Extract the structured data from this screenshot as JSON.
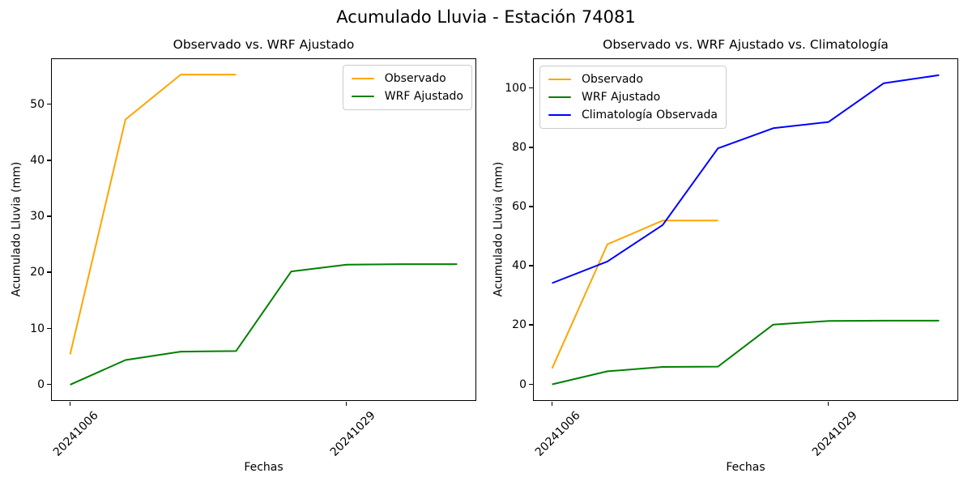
{
  "figure": {
    "suptitle": "Acumulado Lluvia - Estación 74081",
    "background": "#ffffff"
  },
  "chart_data": [
    {
      "type": "line",
      "title": "Observado vs. WRF Ajustado",
      "xlabel": "Fechas",
      "ylabel": "Acumulado Lluvia (mm)",
      "x_tick_labels": [
        "20241006",
        "20241029"
      ],
      "x_tick_point_indices": [
        0,
        5
      ],
      "x_points_count": 8,
      "yticks": [
        0,
        10,
        20,
        30,
        40,
        50
      ],
      "ylim": [
        -2.9,
        58.2
      ],
      "grid": false,
      "legend_position": "upper right",
      "series": [
        {
          "name": "Observado",
          "color": "#FFA500",
          "values": [
            5.4,
            47.3,
            55.3,
            55.3
          ]
        },
        {
          "name": "WRF Ajustado",
          "color": "#008000",
          "values": [
            0.0,
            4.4,
            5.9,
            6.0,
            20.2,
            21.4,
            21.5,
            21.5
          ]
        }
      ]
    },
    {
      "type": "line",
      "title": "Observado vs. WRF Ajustado vs. Climatología",
      "xlabel": "Fechas",
      "ylabel": "Acumulado Lluvia (mm)",
      "x_tick_labels": [
        "20241006",
        "20241029"
      ],
      "x_tick_point_indices": [
        0,
        5
      ],
      "x_points_count": 8,
      "yticks": [
        0,
        20,
        40,
        60,
        80,
        100
      ],
      "ylim": [
        -5.6,
        110.1
      ],
      "grid": false,
      "legend_position": "upper left",
      "series": [
        {
          "name": "Observado",
          "color": "#FFA500",
          "values": [
            5.4,
            47.3,
            55.3,
            55.3
          ]
        },
        {
          "name": "WRF Ajustado",
          "color": "#008000",
          "values": [
            0.0,
            4.4,
            5.9,
            6.0,
            20.2,
            21.4,
            21.5,
            21.5
          ]
        },
        {
          "name": "Climatología Observada",
          "color": "#0000FF",
          "values": [
            34.2,
            41.5,
            53.8,
            79.7,
            86.5,
            88.6,
            101.7,
            104.4
          ]
        }
      ]
    }
  ]
}
